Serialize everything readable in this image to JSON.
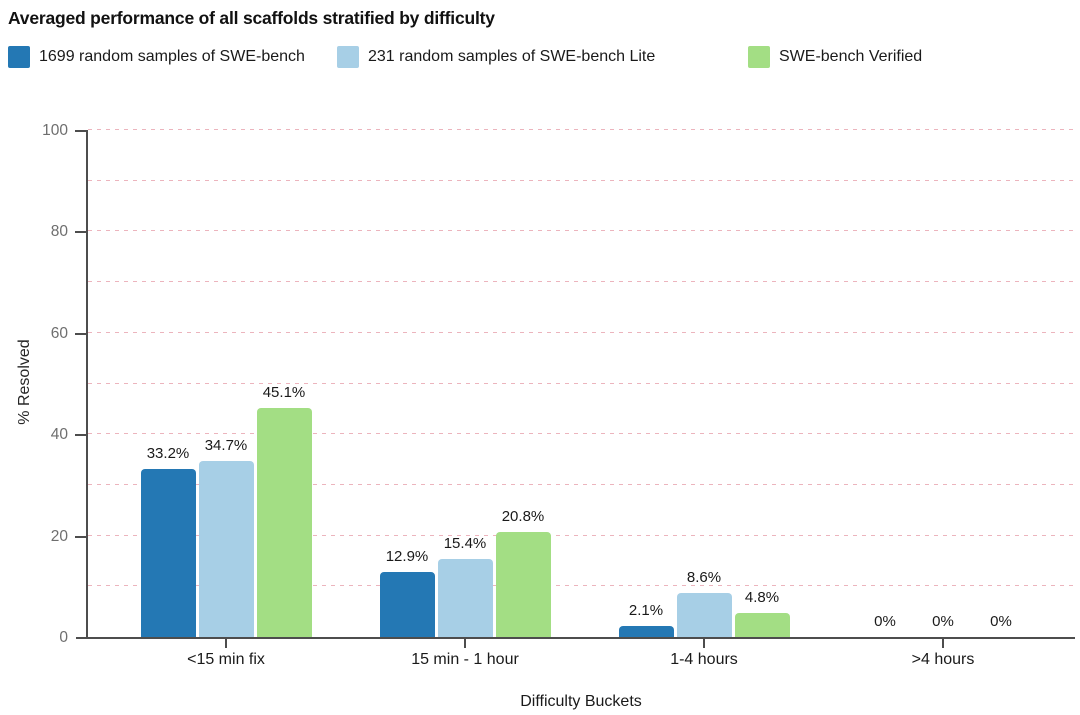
{
  "page": {
    "background": "#ffffff"
  },
  "chart_data": {
    "type": "bar",
    "title": "Averaged performance of all scaffolds stratified by difficulty",
    "xlabel": "Difficulty Buckets",
    "ylabel": "% Resolved",
    "ylim": [
      0,
      100
    ],
    "yticks": [
      0,
      20,
      40,
      60,
      80,
      100
    ],
    "grid": true,
    "grid_interval": 10,
    "grid_style": "dashed",
    "grid_color": "#ecb4bd",
    "axis_color": "#4d4d4d",
    "y_tick_label_color": "#6e6e6e",
    "text_color": "#1a1a1a",
    "legend_position": "top-left",
    "categories": [
      "<15 min fix",
      "15 min - 1 hour",
      "1-4 hours",
      ">4 hours"
    ],
    "series": [
      {
        "name": "1699 random samples of SWE-bench",
        "color": "#2478b4",
        "values": [
          33.2,
          12.9,
          2.1,
          0
        ],
        "value_labels": [
          "33.2%",
          "12.9%",
          "2.1%",
          "0%"
        ]
      },
      {
        "name": "231 random samples of SWE-bench Lite",
        "color": "#a7cfe6",
        "values": [
          34.7,
          15.4,
          8.6,
          0
        ],
        "value_labels": [
          "34.7%",
          "15.4%",
          "8.6%",
          "0%"
        ]
      },
      {
        "name": "SWE-bench Verified",
        "color": "#a3de84",
        "values": [
          45.1,
          20.8,
          4.8,
          0
        ],
        "value_labels": [
          "45.1%",
          "20.8%",
          "4.8%",
          "0%"
        ]
      }
    ]
  }
}
